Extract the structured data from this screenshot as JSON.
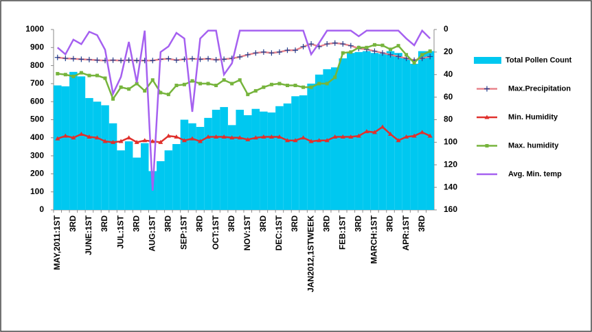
{
  "chart_data": {
    "type": "bar",
    "categories": [
      "MAY,2011:1ST",
      null,
      "3RD",
      null,
      "JUNE:1ST",
      null,
      "3RD",
      null,
      "JUL:1ST",
      null,
      "3RD",
      null,
      "AUG:1ST",
      null,
      "3RD",
      null,
      "SEP:1ST",
      null,
      "3RD",
      null,
      "OCT:1ST",
      null,
      "3RD",
      null,
      "NOV:1ST",
      null,
      "3RD",
      null,
      "DEC:1ST",
      null,
      "3RD",
      null,
      "JAN2012,1STWEEK",
      null,
      "3RD",
      null,
      "FEB:1ST",
      null,
      "3RD",
      null,
      "MARCH:1ST",
      null,
      "3RD",
      null,
      "APR:1ST",
      null,
      "3RD",
      null
    ],
    "series": [
      {
        "name": "Total Pollen Count",
        "type": "bar",
        "color": "#00c8f0",
        "values": [
          690,
          685,
          765,
          740,
          620,
          600,
          580,
          480,
          330,
          380,
          290,
          370,
          215,
          270,
          330,
          365,
          500,
          480,
          460,
          510,
          555,
          570,
          470,
          555,
          525,
          560,
          545,
          540,
          575,
          590,
          630,
          635,
          700,
          750,
          780,
          790,
          840,
          870,
          875,
          880,
          870,
          865,
          880,
          870,
          840,
          810,
          880,
          880
        ]
      },
      {
        "name": "Max.Precipitation",
        "type": "line",
        "marker": "plus",
        "color": "#e8838b",
        "marker_color": "#1f3f8f",
        "values": [
          845,
          840,
          838,
          835,
          833,
          830,
          828,
          830,
          828,
          830,
          828,
          828,
          828,
          835,
          838,
          830,
          835,
          838,
          835,
          838,
          832,
          835,
          840,
          848,
          860,
          870,
          875,
          870,
          875,
          885,
          885,
          905,
          920,
          905,
          920,
          925,
          920,
          910,
          895,
          890,
          880,
          870,
          860,
          850,
          840,
          830,
          840,
          850
        ]
      },
      {
        "name": "Min. Humidity",
        "type": "line",
        "marker": "triangle",
        "color": "#e0302c",
        "marker_color": "#e0302c",
        "values": [
          395,
          410,
          400,
          420,
          405,
          400,
          380,
          375,
          380,
          400,
          375,
          385,
          380,
          375,
          410,
          405,
          385,
          395,
          380,
          405,
          405,
          405,
          400,
          400,
          390,
          400,
          405,
          405,
          405,
          385,
          385,
          400,
          380,
          385,
          385,
          405,
          405,
          405,
          410,
          435,
          430,
          460,
          420,
          385,
          405,
          410,
          430,
          410
        ]
      },
      {
        "name": "Max. humidity",
        "type": "line",
        "marker": "square",
        "color": "#76b43c",
        "marker_color": "#76b43c",
        "values": [
          755,
          750,
          740,
          760,
          745,
          745,
          730,
          615,
          680,
          670,
          700,
          660,
          720,
          650,
          640,
          690,
          695,
          715,
          700,
          700,
          690,
          720,
          700,
          720,
          640,
          660,
          680,
          695,
          700,
          690,
          690,
          680,
          680,
          700,
          700,
          735,
          870,
          875,
          900,
          900,
          915,
          912,
          890,
          910,
          860,
          815,
          860,
          880
        ]
      },
      {
        "name": "Avg. Min. temp",
        "type": "line",
        "marker": "none",
        "axis": "y2",
        "color": "#a560f0",
        "values": [
          16,
          22,
          9,
          13,
          2,
          5,
          18,
          57,
          42,
          11,
          47,
          1,
          143,
          20,
          15,
          3,
          8,
          73,
          8,
          1,
          1,
          40,
          30,
          1,
          1,
          1,
          1,
          1,
          1,
          1,
          1,
          1,
          22,
          12,
          1,
          1,
          1,
          1,
          6,
          1,
          1,
          1,
          1,
          1,
          8,
          14,
          1,
          8
        ]
      }
    ],
    "ylim": [
      0,
      1000
    ],
    "yticks": [
      0,
      100,
      200,
      300,
      400,
      500,
      600,
      700,
      800,
      900,
      1000
    ],
    "y2lim": [
      160,
      0
    ],
    "y2ticks": [
      0,
      20,
      40,
      60,
      80,
      100,
      120,
      140,
      160
    ],
    "legend": "right"
  }
}
